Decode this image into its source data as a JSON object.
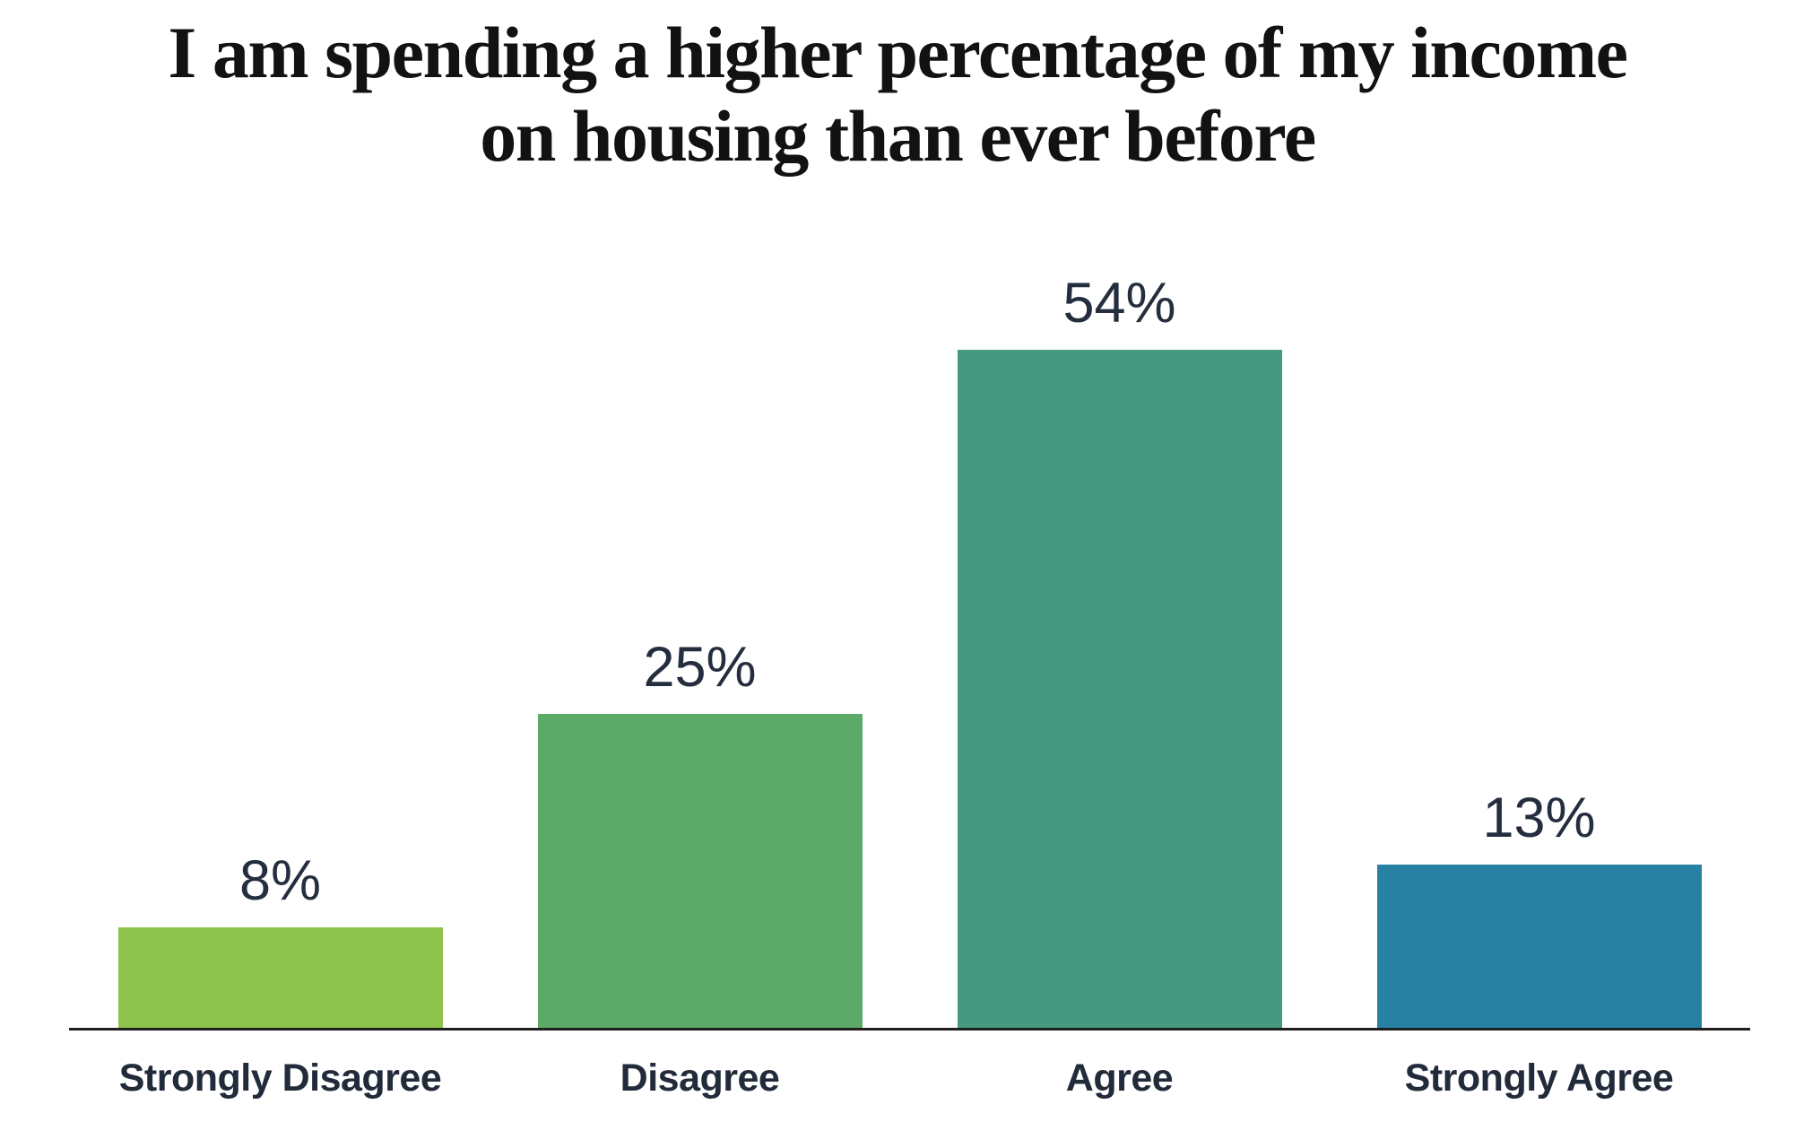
{
  "title_lines": [
    "I am spending a higher percentage of my income",
    "on housing than ever before"
  ],
  "colors": {
    "title_text": "#121212",
    "label_text": "#242e3e",
    "category_text": "#222b3a",
    "axis_line": "#1f1f1f"
  },
  "chart_data": {
    "type": "bar",
    "title": "I am spending a higher percentage of my income on housing than ever before",
    "categories": [
      "Strongly Disagree",
      "Disagree",
      "Agree",
      "Strongly Agree"
    ],
    "values": [
      8,
      25,
      54,
      13
    ],
    "value_labels": [
      "8%",
      "25%",
      "54%",
      "13%"
    ],
    "bar_colors": [
      "#8dc34c",
      "#5ca968",
      "#45997f",
      "#2781a3"
    ],
    "xlabel": "",
    "ylabel": "",
    "ylim": [
      0,
      60
    ],
    "grid": false,
    "legend": "none",
    "value_label_position": "above-bars",
    "orientation": "vertical"
  }
}
